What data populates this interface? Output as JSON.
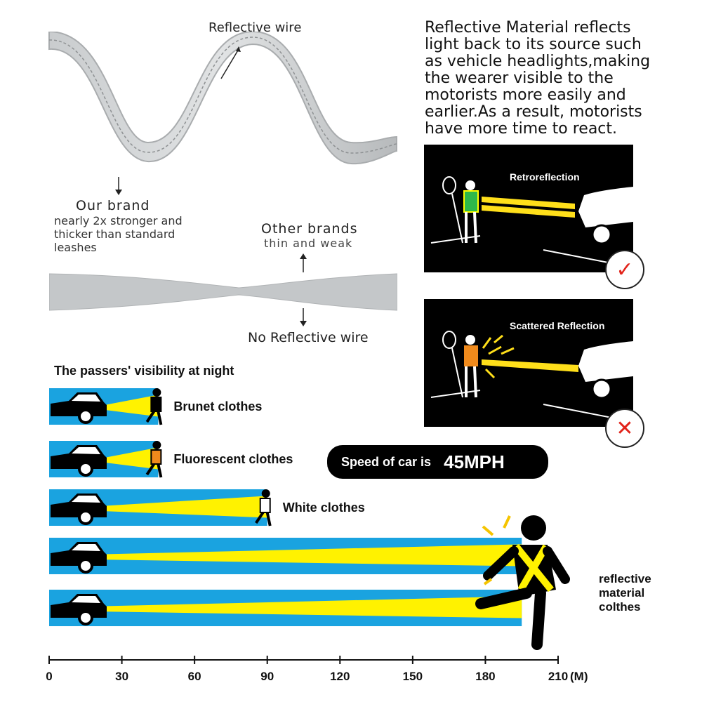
{
  "strap": {
    "reflective_wire_label": "Reflective wire",
    "our_brand_title": "Our brand",
    "our_brand_desc_1": "nearly 2x stronger and",
    "our_brand_desc_2": "thicker than standard",
    "our_brand_desc_3": "leashes",
    "other_brands_title": "Other brands",
    "other_brands_desc": "thin and weak",
    "no_reflective_label": "No Reflective wire"
  },
  "info": {
    "lines": [
      "Reflective Material reflects",
      "light back to its source such",
      "as vehicle headlights,making",
      "the wearer visible to the",
      "motorists more easily and",
      "earlier.As a result, motorists",
      "have more time to react."
    ],
    "panel_good_title": "Retroreflection",
    "panel_bad_title": "Scattered Reflection",
    "check_icon": "✓",
    "cross_icon": "✕"
  },
  "visibility": {
    "title": "The passers' visibility at night",
    "speed_label": "Speed of car is",
    "speed_value": "45MPH",
    "rows": [
      {
        "label": "Brunet clothes",
        "distance_m": 45
      },
      {
        "label": "Fluorescent clothes",
        "distance_m": 45
      },
      {
        "label": "White clothes",
        "distance_m": 90
      },
      {
        "label": "",
        "distance_m": 195
      },
      {
        "label": "",
        "distance_m": 195
      }
    ],
    "reflective_label_1": "reflective",
    "reflective_label_2": "material",
    "reflective_label_3": "colthes",
    "axis": {
      "ticks": [
        "0",
        "30",
        "60",
        "90",
        "120",
        "150",
        "180",
        "210"
      ],
      "unit": "(M)"
    },
    "colors": {
      "bar": "#1aa3e0",
      "beam": "#fff200",
      "orange": "#f08a1c"
    }
  }
}
